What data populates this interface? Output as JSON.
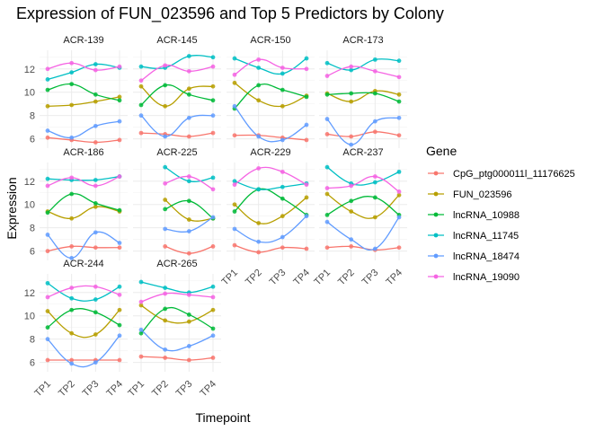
{
  "chart_data": {
    "type": "line",
    "title": "Expression of FUN_023596 and Top 5 Predictors by Colony",
    "xlabel": "Timepoint",
    "ylabel": "Expression",
    "categories": [
      "TP1",
      "TP2",
      "TP3",
      "TP4"
    ],
    "y_ticks": [
      6,
      8,
      10,
      12
    ],
    "ylim": [
      5.2,
      13.6
    ],
    "grid": true,
    "legend_position": "right",
    "legend_title": "Gene",
    "gene_names": [
      "CpG_ptg000011l_11176625",
      "FUN_023596",
      "lncRNA_10988",
      "lncRNA_11745",
      "lncRNA_18474",
      "lncRNA_19090"
    ],
    "colors": [
      "#F8766D",
      "#B79F00",
      "#00BA38",
      "#00BFC4",
      "#619CFF",
      "#F564E3"
    ],
    "facets": [
      {
        "colony": "ACR-139",
        "series": [
          [
            6.1,
            5.9,
            5.7,
            5.9
          ],
          [
            8.8,
            8.9,
            9.2,
            9.6
          ],
          [
            10.2,
            10.7,
            9.8,
            9.3
          ],
          [
            11.1,
            11.7,
            12.4,
            12.1
          ],
          [
            6.7,
            6.1,
            7.1,
            7.5
          ],
          [
            12.0,
            12.5,
            11.9,
            12.2
          ]
        ]
      },
      {
        "colony": "ACR-145",
        "series": [
          [
            6.5,
            6.4,
            6.2,
            6.5
          ],
          [
            10.5,
            8.8,
            10.3,
            10.5
          ],
          [
            8.9,
            10.6,
            9.8,
            9.3
          ],
          [
            12.2,
            12.1,
            13.1,
            13.0
          ],
          [
            8.0,
            6.2,
            7.8,
            8.0
          ],
          [
            11.0,
            12.3,
            11.8,
            12.2
          ]
        ]
      },
      {
        "colony": "ACR-150",
        "series": [
          [
            6.3,
            6.3,
            6.1,
            5.9
          ],
          [
            10.8,
            9.3,
            8.8,
            9.7
          ],
          [
            8.6,
            10.6,
            10.2,
            9.6
          ],
          [
            12.9,
            12.1,
            11.6,
            12.9
          ],
          [
            8.8,
            6.2,
            5.9,
            7.2
          ],
          [
            11.5,
            12.8,
            12.1,
            12.0
          ]
        ]
      },
      {
        "colony": "ACR-173",
        "series": [
          [
            6.4,
            6.2,
            6.6,
            6.3
          ],
          [
            9.9,
            9.2,
            10.1,
            9.8
          ],
          [
            9.8,
            9.9,
            9.9,
            9.2
          ],
          [
            12.5,
            11.9,
            12.8,
            12.7
          ],
          [
            7.7,
            5.5,
            7.5,
            7.8
          ],
          [
            11.4,
            12.2,
            11.8,
            11.3
          ]
        ]
      },
      {
        "colony": "ACR-186",
        "series": [
          [
            6.0,
            6.4,
            6.3,
            6.3
          ],
          [
            9.4,
            8.8,
            9.8,
            9.4
          ],
          [
            9.3,
            10.9,
            10.1,
            9.5
          ],
          [
            12.2,
            12.1,
            12.1,
            12.4
          ],
          [
            7.4,
            5.4,
            7.6,
            6.7
          ],
          [
            11.6,
            12.3,
            11.6,
            12.4
          ]
        ]
      },
      {
        "colony": "ACR-225",
        "series": [
          [
            null,
            6.4,
            5.8,
            6.4
          ],
          [
            null,
            10.4,
            8.7,
            8.8
          ],
          [
            null,
            9.6,
            10.3,
            8.8
          ],
          [
            null,
            13.2,
            12.0,
            12.3
          ],
          [
            null,
            7.9,
            7.7,
            8.9
          ],
          [
            null,
            11.8,
            12.4,
            11.3
          ]
        ]
      },
      {
        "colony": "ACR-229",
        "series": [
          [
            6.5,
            5.9,
            6.3,
            6.2
          ],
          [
            10.0,
            8.4,
            9.0,
            10.6
          ],
          [
            9.4,
            11.3,
            10.5,
            9.1
          ],
          [
            12.0,
            11.3,
            11.5,
            11.8
          ],
          [
            7.9,
            6.8,
            7.2,
            9.0
          ],
          [
            11.7,
            13.1,
            12.8,
            11.7
          ]
        ]
      },
      {
        "colony": "ACR-237",
        "series": [
          [
            6.3,
            6.4,
            6.1,
            6.3
          ],
          [
            10.9,
            9.4,
            8.9,
            10.8
          ],
          [
            9.1,
            10.3,
            10.6,
            9.1
          ],
          [
            13.2,
            11.8,
            11.9,
            12.8
          ],
          [
            8.5,
            7.0,
            6.2,
            8.9
          ],
          [
            11.4,
            11.6,
            12.4,
            11.1
          ]
        ]
      },
      {
        "colony": "ACR-244",
        "series": [
          [
            6.2,
            6.2,
            6.2,
            6.2
          ],
          [
            10.4,
            8.5,
            8.4,
            10.5
          ],
          [
            9.0,
            10.5,
            10.3,
            9.2
          ],
          [
            12.8,
            11.5,
            11.4,
            12.5
          ],
          [
            8.0,
            5.9,
            6.0,
            8.3
          ],
          [
            11.6,
            12.4,
            12.5,
            11.8
          ]
        ]
      },
      {
        "colony": "ACR-265",
        "series": [
          [
            6.5,
            6.4,
            6.2,
            6.4
          ],
          [
            10.9,
            9.6,
            9.5,
            10.5
          ],
          [
            8.5,
            10.6,
            10.1,
            8.9
          ],
          [
            12.9,
            12.4,
            12.0,
            12.5
          ],
          [
            8.8,
            7.1,
            7.4,
            8.3
          ],
          [
            11.2,
            11.9,
            11.8,
            11.6
          ]
        ]
      }
    ]
  }
}
